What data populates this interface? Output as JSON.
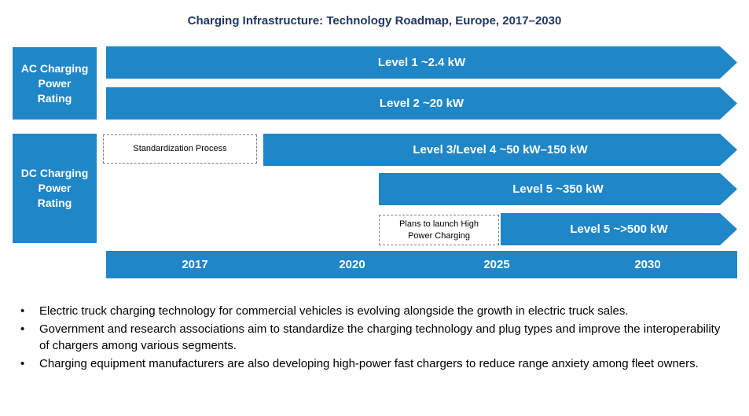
{
  "title": "Charging Infrastructure: Technology Roadmap, Europe, 2017–2030",
  "categories": {
    "ac": [
      "AC Charging",
      "Power",
      "Rating"
    ],
    "dc": [
      "DC Charging",
      "Power",
      "Rating"
    ]
  },
  "arrows": {
    "level1": "Level 1 ~2.4 kW",
    "level2": "Level 2 ~20 kW",
    "level34": "Level 3/Level 4 ~50 kW–150 kW",
    "level5a": "Level 5 ~350 kW",
    "level5b": "Level 5 ~>500 kW"
  },
  "notes": {
    "standardization": "Standardization Process",
    "plans": [
      "Plans to launch High",
      "Power Charging"
    ]
  },
  "timeline": [
    "2017",
    "2020",
    "2025",
    "2030"
  ],
  "bullets": [
    "Electric truck charging technology for commercial vehicles is evolving alongside the growth in electric truck sales.",
    "Government and research associations aim to standardize the charging technology and plug types and improve the interoperability of chargers among various segments.",
    "Charging equipment manufacturers are also developing high-power fast chargers to reduce range anxiety among fleet owners."
  ],
  "colors": {
    "accent": "#1f86c8",
    "title": "#1f3864"
  }
}
